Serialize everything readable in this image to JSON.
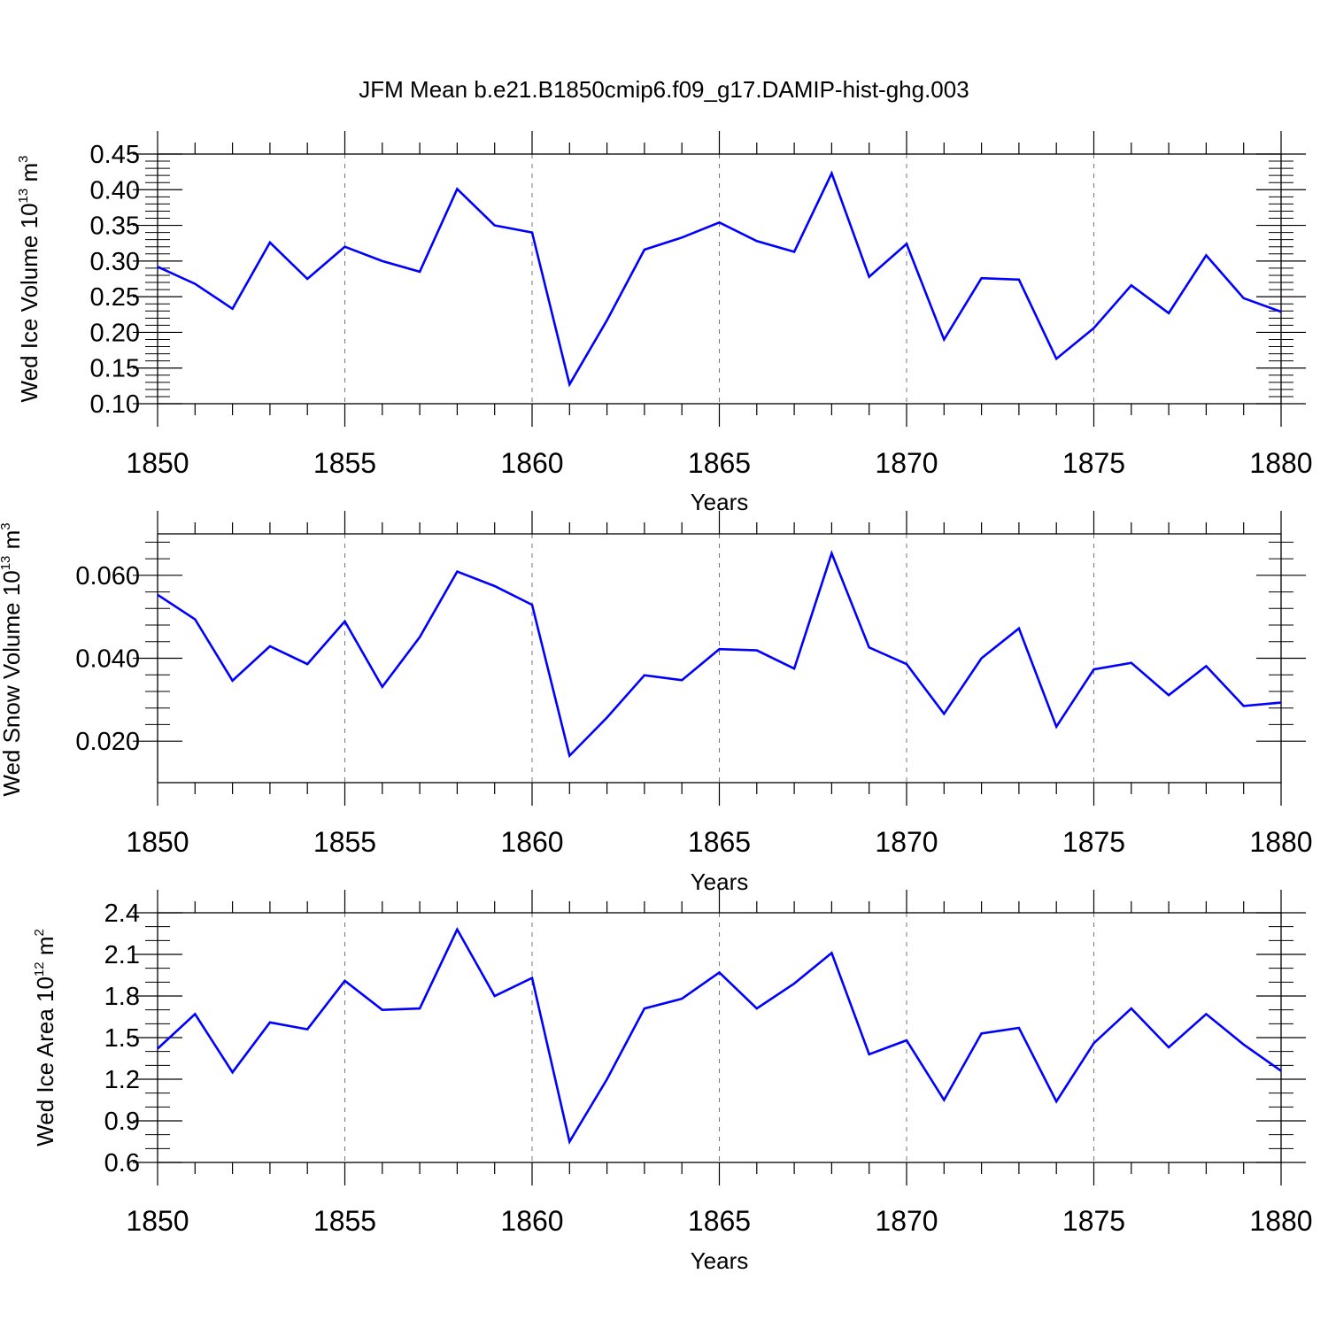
{
  "title": "JFM Mean b.e21.B1850cmip6.f09_g17.DAMIP-hist-ghg.003",
  "line_color": "#0000ff",
  "chart_data": [
    {
      "type": "line",
      "ylabel": {
        "base": "Wed Ice Volume 10",
        "exp": "13",
        "unit": " m",
        "unit_exp": "3"
      },
      "xlabel": "Years",
      "xlim": [
        1850,
        1880
      ],
      "ylim": [
        0.1,
        0.45
      ],
      "grid": "vertical dashed",
      "yticks": [
        "0.10",
        "0.15",
        "0.20",
        "0.25",
        "0.30",
        "0.35",
        "0.40",
        "0.45"
      ],
      "xticks": [
        "1850",
        "1855",
        "1860",
        "1865",
        "1870",
        "1875",
        "1880"
      ],
      "x": [
        1850,
        1851,
        1852,
        1853,
        1854,
        1855,
        1856,
        1857,
        1858,
        1859,
        1860,
        1861,
        1862,
        1863,
        1864,
        1865,
        1866,
        1867,
        1868,
        1869,
        1870,
        1871,
        1872,
        1873,
        1874,
        1875,
        1876,
        1877,
        1878,
        1879,
        1880
      ],
      "values": [
        0.292,
        0.268,
        0.233,
        0.326,
        0.275,
        0.32,
        0.3,
        0.285,
        0.401,
        0.35,
        0.34,
        0.127,
        0.217,
        0.316,
        0.333,
        0.354,
        0.328,
        0.313,
        0.423,
        0.278,
        0.324,
        0.19,
        0.276,
        0.274,
        0.163,
        0.206,
        0.266,
        0.227,
        0.308,
        0.248,
        0.229
      ]
    },
    {
      "type": "line",
      "ylabel": {
        "base": "Wed Snow Volume 10",
        "exp": "13",
        "unit": " m",
        "unit_exp": "3"
      },
      "xlabel": "Years",
      "xlim": [
        1850,
        1880
      ],
      "ylim": [
        0.01,
        0.07
      ],
      "grid": "vertical dashed",
      "yticks": [
        "0.020",
        "0.040",
        "0.060"
      ],
      "xticks": [
        "1850",
        "1855",
        "1860",
        "1865",
        "1870",
        "1875",
        "1880"
      ],
      "x": [
        1850,
        1851,
        1852,
        1853,
        1854,
        1855,
        1856,
        1857,
        1858,
        1859,
        1860,
        1861,
        1862,
        1863,
        1864,
        1865,
        1866,
        1867,
        1868,
        1869,
        1870,
        1871,
        1872,
        1873,
        1874,
        1875,
        1876,
        1877,
        1878,
        1879,
        1880
      ],
      "values": [
        0.0553,
        0.0494,
        0.0346,
        0.0429,
        0.0386,
        0.0489,
        0.0331,
        0.0451,
        0.0609,
        0.0574,
        0.0529,
        0.0165,
        0.0257,
        0.0359,
        0.0347,
        0.0422,
        0.0419,
        0.0375,
        0.0653,
        0.0426,
        0.0386,
        0.0266,
        0.04,
        0.0472,
        0.0235,
        0.0373,
        0.0389,
        0.0311,
        0.0381,
        0.0285,
        0.0293
      ]
    },
    {
      "type": "line",
      "ylabel": {
        "base": "Wed Ice Area 10",
        "exp": "12",
        "unit": " m",
        "unit_exp": "2"
      },
      "xlabel": "Years",
      "xlim": [
        1850,
        1880
      ],
      "ylim": [
        0.6,
        2.4
      ],
      "grid": "vertical dashed",
      "yticks": [
        "0.6",
        "0.9",
        "1.2",
        "1.5",
        "1.8",
        "2.1",
        "2.4"
      ],
      "xticks": [
        "1850",
        "1855",
        "1860",
        "1865",
        "1870",
        "1875",
        "1880"
      ],
      "x": [
        1850,
        1851,
        1852,
        1853,
        1854,
        1855,
        1856,
        1857,
        1858,
        1859,
        1860,
        1861,
        1862,
        1863,
        1864,
        1865,
        1866,
        1867,
        1868,
        1869,
        1870,
        1871,
        1872,
        1873,
        1874,
        1875,
        1876,
        1877,
        1878,
        1879,
        1880
      ],
      "values": [
        1.42,
        1.67,
        1.25,
        1.61,
        1.56,
        1.91,
        1.7,
        1.71,
        2.28,
        1.8,
        1.93,
        0.75,
        1.2,
        1.71,
        1.78,
        1.97,
        1.71,
        1.89,
        2.11,
        1.38,
        1.48,
        1.05,
        1.53,
        1.57,
        1.04,
        1.46,
        1.71,
        1.43,
        1.67,
        1.45,
        1.26
      ]
    }
  ]
}
